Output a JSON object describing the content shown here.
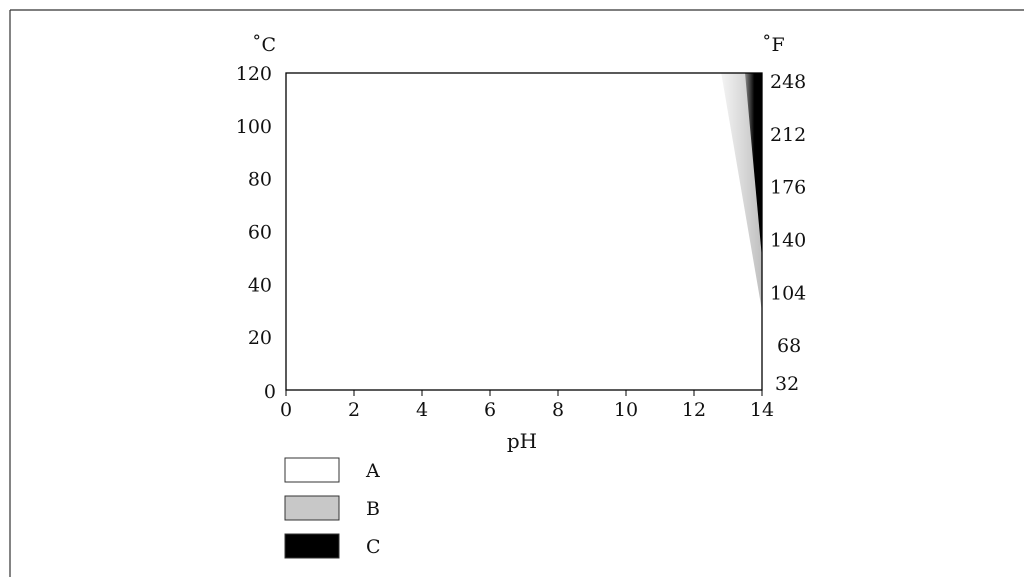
{
  "chart_data": {
    "type": "heatmap",
    "xlabel": "pH",
    "y_unit_left": "˚C",
    "y_unit_right": "˚F",
    "x_ticks": [
      0,
      2,
      4,
      6,
      8,
      10,
      12,
      14
    ],
    "y_ticks_left": [
      0,
      20,
      40,
      60,
      80,
      100,
      120
    ],
    "y_ticks_right": [
      32,
      68,
      104,
      140,
      176,
      212,
      248
    ],
    "xlim": [
      0,
      14
    ],
    "ylim": [
      0,
      120
    ],
    "regions": [
      {
        "name": "B",
        "polygon": [
          [
            12.8,
            120
          ],
          [
            14,
            120
          ],
          [
            14,
            30
          ]
        ]
      },
      {
        "name": "C",
        "polygon": [
          [
            13.5,
            120
          ],
          [
            14,
            120
          ],
          [
            14,
            50
          ]
        ]
      }
    ],
    "legend": [
      {
        "label": "A",
        "color": "#ffffff"
      },
      {
        "label": "B",
        "color": "#c8c8c8"
      },
      {
        "label": "C",
        "color": "#000000"
      }
    ],
    "legend_placement": "bottom-left"
  }
}
